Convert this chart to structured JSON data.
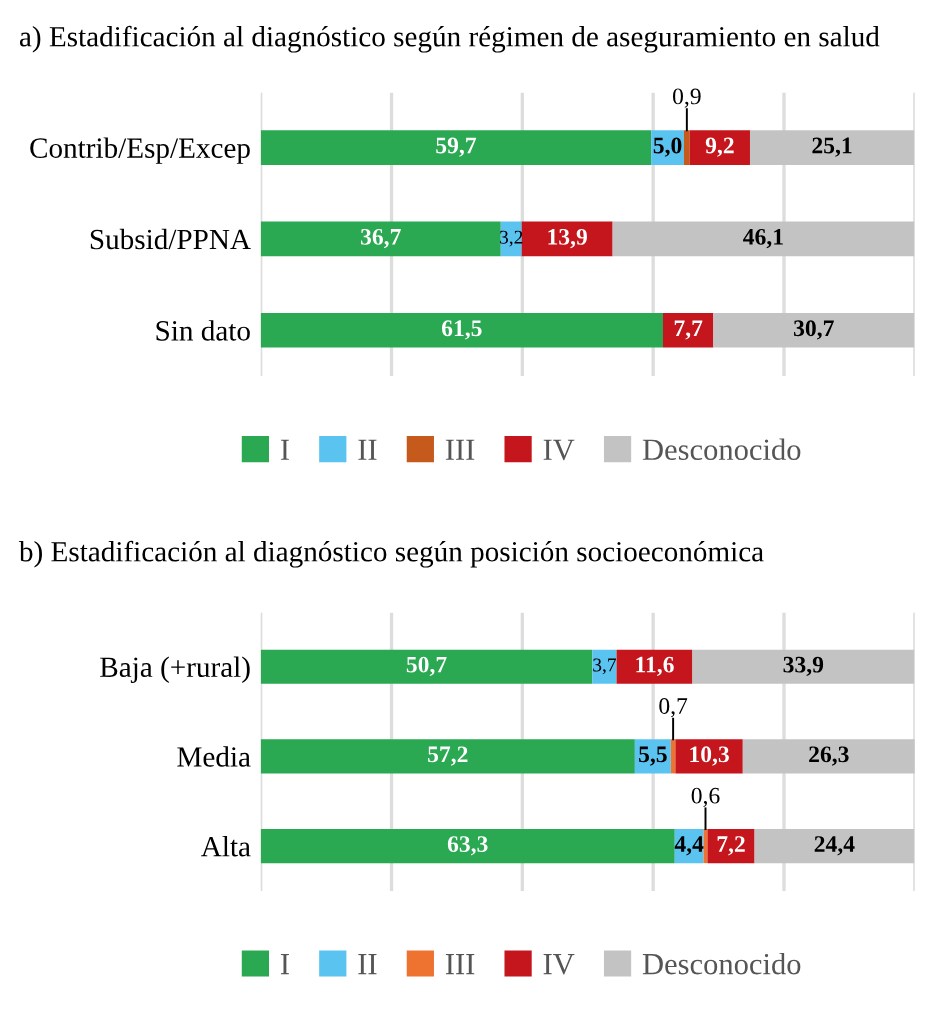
{
  "chart_data": [
    {
      "type": "bar",
      "orientation": "horizontal",
      "stacked": true,
      "title": "a) Estadificación al diagnóstico según régimen de aseguramiento en salud",
      "categories": [
        "Contrib/Esp/Excep",
        "Subsid/PPNA",
        "Sin dato"
      ],
      "xlim": [
        0,
        100
      ],
      "xticks": [
        {
          "value": 0,
          "label": null
        },
        {
          "value": 20,
          "label": null
        },
        {
          "value": 40,
          "label": null
        },
        {
          "value": 60,
          "label": null
        },
        {
          "value": 80,
          "label": null
        },
        {
          "value": 100,
          "label": null
        }
      ],
      "grid": "x",
      "tick_labels": "y",
      "legend": "bottom",
      "series": [
        {
          "name": "I",
          "color": "#2aa852",
          "values": [
            59.7,
            36.7,
            61.5
          ],
          "value_labels": [
            "59,7",
            "36,7",
            "61,5"
          ]
        },
        {
          "name": "II",
          "color": "#5bc3f0",
          "values": [
            5.0,
            3.2,
            null
          ],
          "value_labels": [
            "5,0",
            "3,2",
            null
          ]
        },
        {
          "name": "III",
          "color": "#c55a1c",
          "values": [
            0.9,
            null,
            null
          ],
          "value_labels": [
            "0,9",
            null,
            null
          ]
        },
        {
          "name": "IV",
          "color": "#c4161c",
          "values": [
            9.2,
            13.9,
            7.7
          ],
          "value_labels": [
            "9,2",
            "13,9",
            "7,7"
          ]
        },
        {
          "name": "Desconocido",
          "color": "#c3c3c3",
          "values": [
            25.1,
            46.1,
            30.7
          ],
          "value_labels": [
            "25,1",
            "46,1",
            "30,7"
          ]
        }
      ]
    },
    {
      "type": "bar",
      "orientation": "horizontal",
      "stacked": true,
      "title": "b) Estadificación al diagnóstico según posición socioeconómica",
      "categories": [
        "Baja (+rural)",
        "Media",
        "Alta"
      ],
      "xlim": [
        0,
        100
      ],
      "xticks": [
        {
          "value": 0,
          "label": null
        },
        {
          "value": 20,
          "label": null
        },
        {
          "value": 40,
          "label": null
        },
        {
          "value": 60,
          "label": null
        },
        {
          "value": 80,
          "label": null
        },
        {
          "value": 100,
          "label": null
        }
      ],
      "grid": "x",
      "tick_labels": "y",
      "legend": "bottom",
      "series": [
        {
          "name": "I",
          "color": "#2aa852",
          "values": [
            50.7,
            57.2,
            63.3
          ],
          "value_labels": [
            "50,7",
            "57,2",
            "63,3"
          ]
        },
        {
          "name": "II",
          "color": "#5bc3f0",
          "values": [
            3.7,
            5.5,
            4.4
          ],
          "value_labels": [
            "3,7",
            "5,5",
            "4,4"
          ]
        },
        {
          "name": "III",
          "color": "#ee7230",
          "values": [
            null,
            0.7,
            0.6
          ],
          "value_labels": [
            null,
            "0,7",
            "0,6"
          ]
        },
        {
          "name": "IV",
          "color": "#c4161c",
          "values": [
            11.6,
            10.3,
            7.2
          ],
          "value_labels": [
            "11,6",
            "10,3",
            "7,2"
          ]
        },
        {
          "name": "Desconocido",
          "color": "#c3c3c3",
          "values": [
            33.9,
            26.3,
            24.4
          ],
          "value_labels": [
            "33,9",
            "26,3",
            "24,4"
          ]
        }
      ]
    }
  ]
}
